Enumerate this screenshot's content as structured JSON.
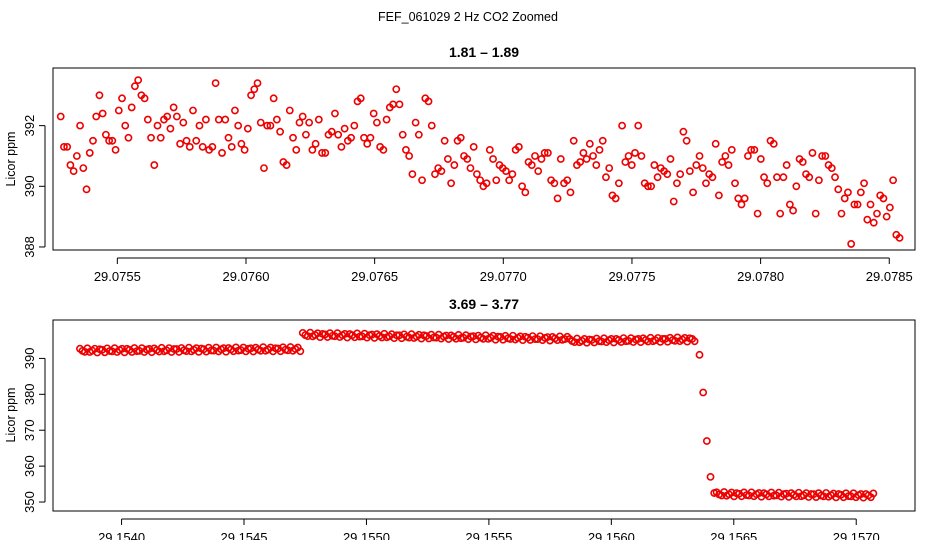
{
  "figure_title": "FEF_061029  2 Hz CO2 Zoomed",
  "chart_data": [
    {
      "type": "scatter",
      "title": "1.81 – 1.89",
      "xlabel": "",
      "ylabel": "Licor ppm",
      "xlim": [
        29.07525,
        29.0786
      ],
      "ylim": [
        387.9,
        393.9
      ],
      "x_ticks": [
        29.0755,
        29.076,
        29.0765,
        29.077,
        29.0775,
        29.078,
        29.0785
      ],
      "x_tick_labels": [
        "29.0755",
        "29.0760",
        "29.0765",
        "29.0770",
        "29.0775",
        "29.0780",
        "29.0785"
      ],
      "y_ticks": [
        388,
        390,
        392
      ],
      "y_tick_labels": [
        "388",
        "390",
        "392"
      ],
      "marker_color": "#ee0000",
      "series": [
        {
          "name": "CO2",
          "x_start": 29.07528,
          "x_end": 29.07854,
          "y": [
            392.3,
            391.3,
            391.3,
            390.7,
            390.5,
            391.0,
            392.0,
            390.6,
            389.9,
            391.1,
            391.5,
            392.3,
            393.0,
            392.4,
            391.7,
            391.5,
            391.5,
            391.2,
            392.5,
            392.9,
            392.0,
            391.6,
            392.6,
            393.3,
            393.5,
            393.0,
            392.9,
            392.2,
            391.6,
            390.7,
            392.0,
            391.6,
            392.2,
            392.3,
            391.9,
            392.6,
            392.3,
            391.4,
            392.1,
            391.5,
            391.3,
            392.5,
            391.5,
            392.0,
            391.3,
            392.2,
            391.2,
            391.3,
            393.4,
            392.2,
            391.1,
            392.2,
            391.6,
            391.3,
            392.5,
            392.0,
            391.4,
            391.2,
            391.9,
            393.0,
            393.2,
            393.4,
            392.1,
            390.6,
            392.0,
            392.0,
            392.9,
            392.2,
            391.8,
            390.8,
            390.7,
            392.5,
            391.6,
            391.2,
            392.1,
            392.3,
            391.7,
            392.1,
            391.2,
            391.4,
            392.2,
            391.1,
            391.1,
            391.7,
            391.8,
            392.4,
            391.7,
            391.3,
            391.9,
            391.5,
            391.6,
            392.0,
            392.8,
            392.9,
            391.6,
            391.4,
            391.6,
            392.4,
            392.1,
            391.3,
            391.2,
            392.2,
            392.6,
            392.7,
            393.2,
            392.7,
            391.7,
            391.2,
            391.0,
            390.4,
            392.1,
            391.7,
            390.2,
            392.9,
            392.8,
            392.0,
            390.4,
            390.6,
            390.5,
            391.5,
            390.9,
            390.1,
            390.7,
            391.5,
            391.6,
            391.0,
            390.9,
            390.6,
            391.3,
            390.4,
            390.2,
            390.0,
            390.1,
            391.2,
            390.9,
            390.2,
            390.7,
            390.6,
            390.5,
            390.2,
            390.4,
            391.2,
            391.3,
            390.0,
            389.8,
            390.8,
            390.7,
            391.0,
            390.5,
            390.9,
            391.1,
            391.1,
            390.2,
            390.1,
            389.6,
            390.9,
            390.1,
            390.2,
            389.8,
            391.5,
            390.7,
            390.8,
            391.1,
            390.9,
            391.4,
            391.0,
            390.7,
            391.2,
            391.5,
            390.3,
            390.6,
            389.7,
            389.6,
            390.1,
            392.0,
            390.8,
            391.0,
            390.7,
            391.1,
            392.0,
            391.0,
            390.1,
            390.0,
            390.0,
            390.7,
            390.3,
            390.6,
            390.5,
            390.4,
            390.9,
            389.5,
            390.1,
            390.4,
            391.8,
            391.5,
            390.5,
            389.8,
            390.7,
            391.0,
            390.6,
            390.1,
            390.4,
            390.3,
            391.4,
            389.7,
            390.8,
            391.0,
            390.7,
            391.2,
            390.1,
            389.6,
            389.4,
            389.6,
            391.0,
            391.2,
            391.2,
            389.1,
            390.9,
            390.3,
            390.1,
            391.5,
            391.4,
            390.3,
            389.1,
            390.3,
            390.7,
            389.4,
            389.2,
            390.0,
            390.9,
            390.8,
            390.4,
            390.3,
            391.1,
            389.1,
            390.2,
            391.0,
            391.0,
            390.7,
            390.6,
            390.3,
            389.9,
            389.1,
            389.6,
            389.8,
            388.1,
            389.4,
            389.4,
            389.8,
            390.1,
            388.9,
            389.4,
            388.8,
            389.1,
            389.7,
            389.6,
            389.0,
            389.3,
            390.2,
            388.4,
            388.3
          ]
        }
      ]
    },
    {
      "type": "scatter",
      "title": "3.69 – 3.77",
      "xlabel": "",
      "ylabel": "Licor ppm",
      "xlim": [
        29.15372,
        29.15724
      ],
      "ylim": [
        347.5,
        400.7
      ],
      "x_ticks": [
        29.154,
        29.1545,
        29.155,
        29.1555,
        29.156,
        29.1565,
        29.157
      ],
      "x_tick_labels": [
        "29.1540",
        "29.1545",
        "29.1550",
        "29.1555",
        "29.1560",
        "29.1565",
        "29.1570"
      ],
      "y_ticks": [
        350,
        360,
        370,
        380,
        390
      ],
      "y_tick_labels": [
        "350",
        "360",
        "370",
        "380",
        "390"
      ],
      "marker_color": "#ee0000",
      "series": [
        {
          "name": "CO2",
          "segments": [
            {
              "x_start": 29.15383,
              "x_end": 29.15473,
              "y_start": 392.2,
              "y_end": 392.6,
              "count": 90
            },
            {
              "x_start": 29.15474,
              "x_end": 29.15582,
              "y_start": 396.6,
              "y_end": 395.5,
              "count": 108
            },
            {
              "x_start": 29.15583,
              "x_end": 29.15634,
              "y_start": 394.9,
              "y_end": 395.3,
              "count": 52
            },
            {
              "x_start": 29.15636,
              "x_end": 29.15642,
              "y_values": [
                391,
                380.5,
                367,
                357,
                352.5
              ],
              "count": 5
            },
            {
              "x_start": 29.15643,
              "x_end": 29.15707,
              "y_start": 352.2,
              "y_end": 351.8,
              "count": 64
            }
          ]
        }
      ]
    }
  ]
}
